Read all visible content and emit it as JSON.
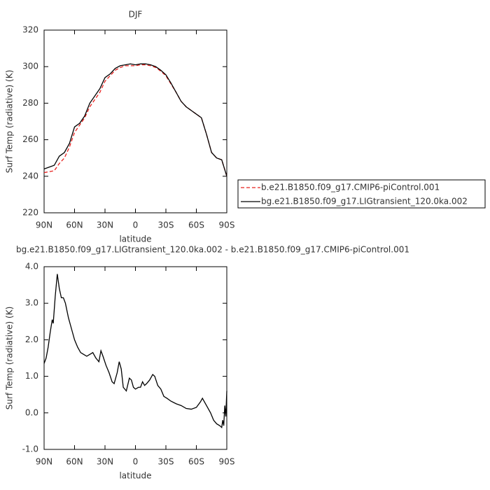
{
  "chart_data": [
    {
      "type": "line",
      "title": "DJF",
      "xlabel": "latitude",
      "ylabel": "Surf Temp (radiative) (K)",
      "x": [
        90,
        85,
        80,
        75,
        70,
        65,
        60,
        55,
        50,
        45,
        40,
        35,
        30,
        25,
        20,
        15,
        10,
        5,
        0,
        -5,
        -10,
        -15,
        -20,
        -25,
        -30,
        -35,
        -40,
        -45,
        -50,
        -55,
        -60,
        -65,
        -70,
        -75,
        -80,
        -85,
        -90
      ],
      "series": [
        {
          "name": "b.e21.B1850.f09_g17.CMIP6-piControl.001",
          "color": "#e8201e",
          "linestyle": "dashed",
          "values": [
            242,
            242.5,
            243,
            247,
            250,
            256,
            264,
            268,
            272,
            278,
            282,
            286,
            292,
            295,
            298,
            299.5,
            300.5,
            300.5,
            300.5,
            301,
            301,
            300.5,
            299.5,
            297.5,
            295,
            290.5,
            286,
            281,
            278,
            276,
            274,
            272,
            263,
            253,
            250,
            249,
            240
          ]
        },
        {
          "name": "bg.e21.B1850.f09_g17.LIGtransient_120.0ka.002",
          "color": "#000000",
          "linestyle": "solid",
          "values": [
            244,
            245,
            246,
            251,
            253,
            258,
            267,
            269,
            273,
            280,
            284,
            288,
            294,
            296,
            299,
            300.5,
            301,
            301.5,
            301,
            301.5,
            301.5,
            301,
            300,
            298,
            295.5,
            291,
            286,
            281,
            278,
            276,
            274,
            272,
            263,
            253,
            250,
            249,
            240
          ]
        }
      ],
      "xlim": [
        90,
        -90
      ],
      "xticks": [
        {
          "value": 90,
          "label": "90N"
        },
        {
          "value": 60,
          "label": "60N"
        },
        {
          "value": 30,
          "label": "30N"
        },
        0,
        {
          "value": -30,
          "label": "30S"
        },
        {
          "value": -60,
          "label": "60S"
        },
        {
          "value": -90,
          "label": "90S"
        }
      ],
      "ylim": [
        220,
        320
      ],
      "yticks": [
        220,
        240,
        260,
        280,
        300,
        320
      ],
      "legend": "right"
    },
    {
      "type": "line",
      "title": "bg.e21.B1850.f09_g17.LIGtransient_120.0ka.002 - b.e21.B1850.f09_g17.CMIP6-piControl.001",
      "xlabel": "latitude",
      "ylabel": "Surf Temp (radiative) (K)",
      "color": "#000000",
      "x": [
        90,
        88,
        86,
        84,
        82,
        81,
        79,
        77,
        75,
        73,
        71,
        69,
        66,
        63,
        60,
        57,
        54,
        51,
        48,
        45,
        42,
        39,
        36,
        34,
        32,
        29,
        26,
        23,
        21,
        18,
        16,
        14,
        12,
        9,
        6,
        4,
        2,
        0,
        -3,
        -5,
        -7,
        -9,
        -11,
        -14,
        -17,
        -19,
        -22,
        -25,
        -28,
        -31,
        -35,
        -40,
        -45,
        -50,
        -55,
        -60,
        -64,
        -66,
        -68,
        -71,
        -74,
        -77,
        -80,
        -83,
        -85,
        -86,
        -87,
        -88,
        -89,
        -90
      ],
      "values": [
        1.35,
        1.5,
        1.8,
        2.2,
        2.55,
        2.45,
        3.2,
        3.8,
        3.4,
        3.15,
        3.15,
        3.0,
        2.6,
        2.3,
        2.0,
        1.8,
        1.65,
        1.6,
        1.55,
        1.6,
        1.65,
        1.5,
        1.4,
        1.7,
        1.55,
        1.3,
        1.1,
        0.85,
        0.8,
        1.1,
        1.4,
        1.2,
        0.7,
        0.6,
        0.95,
        0.9,
        0.7,
        0.65,
        0.7,
        0.7,
        0.85,
        0.75,
        0.8,
        0.9,
        1.05,
        1.0,
        0.75,
        0.65,
        0.45,
        0.4,
        0.32,
        0.25,
        0.2,
        0.12,
        0.1,
        0.15,
        0.3,
        0.4,
        0.3,
        0.15,
        0.0,
        -0.2,
        -0.3,
        -0.35,
        -0.4,
        -0.2,
        -0.35,
        0.2,
        -0.1,
        0.6
      ],
      "xlim": [
        90,
        -90
      ],
      "xticks": [
        {
          "value": 90,
          "label": "90N"
        },
        {
          "value": 60,
          "label": "60N"
        },
        {
          "value": 30,
          "label": "30N"
        },
        0,
        {
          "value": -30,
          "label": "30S"
        },
        {
          "value": -60,
          "label": "60S"
        },
        {
          "value": -90,
          "label": "90S"
        }
      ],
      "ylim": [
        -1,
        4
      ],
      "yticks": [
        {
          "value": -1,
          "label": "-1.0"
        },
        {
          "value": 0,
          "label": "0.0"
        },
        {
          "value": 1,
          "label": "1.0"
        },
        {
          "value": 2,
          "label": "2.0"
        },
        {
          "value": 3,
          "label": "3.0"
        },
        {
          "value": 4,
          "label": "4.0"
        }
      ]
    }
  ]
}
